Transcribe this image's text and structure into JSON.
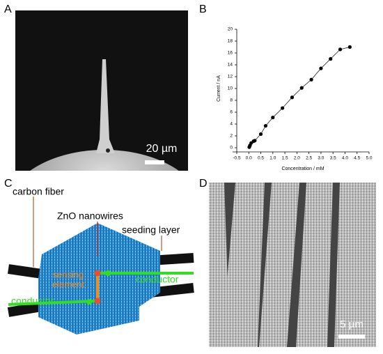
{
  "panel_labels": [
    "A",
    "B",
    "C",
    "D"
  ],
  "panel_a": {
    "scale_bar": "20 µm"
  },
  "chart_data": {
    "type": "line",
    "x_label": "Concentration / mM",
    "y_label": "Current / nA",
    "x": [
      0.02,
      0.05,
      0.1,
      0.2,
      0.25,
      0.5,
      0.7,
      1.0,
      1.4,
      1.8,
      2.2,
      2.6,
      3.0,
      3.4,
      3.8,
      4.2
    ],
    "series": [
      {
        "color": "#000000",
        "values": [
          0.1,
          0.4,
          0.8,
          1.1,
          1.2,
          2.3,
          3.7,
          5.1,
          6.7,
          8.5,
          10.1,
          11.5,
          13.4,
          15.0,
          16.6,
          17.0
        ]
      }
    ],
    "xlim": [
      -0.5,
      5.0
    ],
    "ylim": [
      0,
      20
    ],
    "xticks": [
      -0.5,
      {
        "value": 0,
        "label": "0.0"
      },
      0.5,
      {
        "value": 1,
        "label": "1.0"
      },
      1.5,
      {
        "value": 2,
        "label": "2.0"
      },
      2.5,
      {
        "value": 3,
        "label": "3.0"
      },
      3.5,
      {
        "value": 4,
        "label": "4.0"
      },
      4.5,
      {
        "value": 5,
        "label": "5.0"
      }
    ],
    "yticks": [
      0,
      2,
      4,
      6,
      8,
      10,
      12,
      14,
      16,
      18,
      20
    ]
  },
  "panel_c": {
    "carbon_fiber": "carbon fiber",
    "zno_nanowires": "ZnO nanowires",
    "seeding_layer": "seeding layer",
    "sensing_element": [
      "sensing",
      "element"
    ],
    "conductor_right": "conductor",
    "conductor_left": "conductor"
  },
  "panel_d": {
    "scale_bar": "5 µm"
  }
}
